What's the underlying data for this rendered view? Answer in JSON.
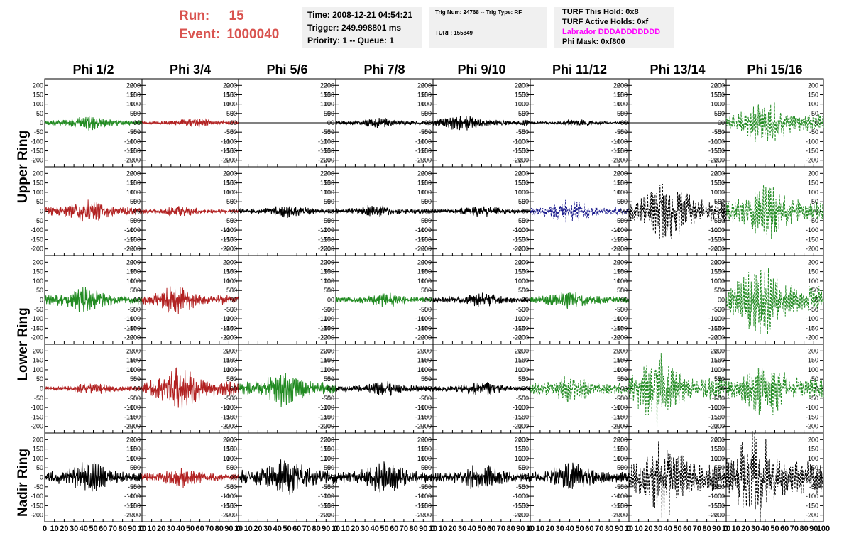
{
  "run": {
    "run_label": "Run:",
    "run_value": "15",
    "event_label": "Event:",
    "event_value": "1000040"
  },
  "info_time": [
    "Time: 2008-12-21 04:54:21",
    "Trigger: 249.998801 ms",
    "Priority: 1 -- Queue: 1"
  ],
  "info_trig": {
    "line1": "Trig Num: 24768 -- Trig Type: RF",
    "line2": "TURF: 155849"
  },
  "info_turf": {
    "this_hold": "TURF This Hold: 0x8",
    "active_holds": "TURF Active Holds: 0xf",
    "labrador": "Labrador DDDADDDDDDD",
    "phi_mask": "Phi Mask: 0xf800",
    "labrador_color": "#ff00ff"
  },
  "colors": {
    "run_text": "#d9534f",
    "black": "#000000",
    "red": "#b22222",
    "green": "#228b22",
    "blue": "#1a1a8c"
  },
  "chart_data": {
    "type": "line",
    "title": "",
    "columns": [
      "Phi 1/2",
      "Phi 3/4",
      "Phi 5/6",
      "Phi 7/8",
      "Phi 9/10",
      "Phi 11/12",
      "Phi 13/14",
      "Phi 15/16"
    ],
    "rows": [
      "Upper Ring",
      "",
      "Lower Ring",
      "",
      "Nadir Ring"
    ],
    "xlim": [
      0,
      100
    ],
    "ylim": [
      -220,
      220
    ],
    "y_ticks": [
      -200,
      -150,
      -100,
      -50,
      0,
      50,
      100,
      150,
      200
    ],
    "x_ticks": [
      0,
      10,
      20,
      30,
      40,
      50,
      60,
      70,
      80,
      90,
      100
    ],
    "x_tick_labels": [
      [
        "0",
        "10",
        "20",
        "30",
        "40",
        "50",
        "60",
        "70",
        "80",
        "90",
        "10"
      ],
      [
        "0",
        "10",
        "20",
        "30",
        "40",
        "50",
        "60",
        "70",
        "80",
        "90",
        "10"
      ],
      [
        "0",
        "10",
        "20",
        "30",
        "40",
        "50",
        "60",
        "70",
        "80",
        "90",
        "10"
      ],
      [
        "0",
        "10",
        "20",
        "30",
        "40",
        "50",
        "60",
        "70",
        "80",
        "90",
        "10"
      ],
      [
        "0",
        "10",
        "20",
        "30",
        "40",
        "50",
        "60",
        "70",
        "80",
        "90",
        "10"
      ],
      [
        "0",
        "10",
        "20",
        "30",
        "40",
        "50",
        "60",
        "70",
        "80",
        "90",
        "10"
      ],
      [
        "0",
        "10",
        "20",
        "30",
        "40",
        "50",
        "60",
        "70",
        "80",
        "90",
        "10"
      ],
      [
        "0",
        "10",
        "20",
        "30",
        "40",
        "50",
        "60",
        "70",
        "80",
        "90",
        "100"
      ]
    ],
    "panels": [
      [
        {
          "color": "green",
          "dashed": false,
          "amp": 35,
          "peak": 45,
          "flat": false
        },
        {
          "color": "red",
          "dashed": false,
          "amp": 22,
          "peak": 55,
          "flat": false
        },
        {
          "color": "black",
          "dashed": false,
          "amp": 0,
          "peak": 50,
          "flat": true
        },
        {
          "color": "black",
          "dashed": false,
          "amp": 25,
          "peak": 45,
          "flat": false
        },
        {
          "color": "black",
          "dashed": false,
          "amp": 38,
          "peak": 30,
          "flat": false
        },
        {
          "color": "black",
          "dashed": false,
          "amp": 15,
          "peak": 50,
          "flat": false
        },
        {
          "color": "black",
          "dashed": false,
          "amp": 0,
          "peak": 50,
          "flat": true
        },
        {
          "color": "green",
          "dashed": true,
          "amp": 110,
          "peak": 40,
          "flat": false
        }
      ],
      [
        {
          "color": "red",
          "dashed": false,
          "amp": 55,
          "peak": 45,
          "flat": false
        },
        {
          "color": "red",
          "dashed": false,
          "amp": 25,
          "peak": 40,
          "flat": false
        },
        {
          "color": "black",
          "dashed": false,
          "amp": 30,
          "peak": 50,
          "flat": false
        },
        {
          "color": "black",
          "dashed": false,
          "amp": 30,
          "peak": 40,
          "flat": false
        },
        {
          "color": "black",
          "dashed": false,
          "amp": 25,
          "peak": 50,
          "flat": false
        },
        {
          "color": "blue",
          "dashed": true,
          "amp": 55,
          "peak": 40,
          "flat": false
        },
        {
          "color": "black",
          "dashed": true,
          "amp": 150,
          "peak": 40,
          "flat": false
        },
        {
          "color": "green",
          "dashed": true,
          "amp": 140,
          "peak": 40,
          "flat": false
        }
      ],
      [
        {
          "color": "green",
          "dashed": false,
          "amp": 65,
          "peak": 40,
          "flat": false
        },
        {
          "color": "red",
          "dashed": false,
          "amp": 65,
          "peak": 35,
          "flat": false
        },
        {
          "color": "green",
          "dashed": false,
          "amp": 0,
          "peak": 50,
          "flat": true
        },
        {
          "color": "green",
          "dashed": false,
          "amp": 35,
          "peak": 50,
          "flat": false
        },
        {
          "color": "black",
          "dashed": false,
          "amp": 35,
          "peak": 50,
          "flat": false
        },
        {
          "color": "green",
          "dashed": false,
          "amp": 45,
          "peak": 40,
          "flat": false
        },
        {
          "color": "green",
          "dashed": false,
          "amp": 0,
          "peak": 50,
          "flat": true
        },
        {
          "color": "green",
          "dashed": true,
          "amp": 180,
          "peak": 35,
          "flat": false
        }
      ],
      [
        {
          "color": "red",
          "dashed": false,
          "amp": 30,
          "peak": 50,
          "flat": false
        },
        {
          "color": "red",
          "dashed": false,
          "amp": 100,
          "peak": 40,
          "flat": false
        },
        {
          "color": "green",
          "dashed": false,
          "amp": 85,
          "peak": 45,
          "flat": false
        },
        {
          "color": "black",
          "dashed": false,
          "amp": 35,
          "peak": 50,
          "flat": false
        },
        {
          "color": "black",
          "dashed": false,
          "amp": 35,
          "peak": 50,
          "flat": false
        },
        {
          "color": "green",
          "dashed": true,
          "amp": 75,
          "peak": 40,
          "flat": false
        },
        {
          "color": "green",
          "dashed": true,
          "amp": 170,
          "peak": 30,
          "flat": false
        },
        {
          "color": "green",
          "dashed": true,
          "amp": 140,
          "peak": 40,
          "flat": false
        }
      ],
      [
        {
          "color": "black",
          "dashed": false,
          "amp": 75,
          "peak": 45,
          "flat": false
        },
        {
          "color": "red",
          "dashed": false,
          "amp": 50,
          "peak": 40,
          "flat": false
        },
        {
          "color": "black",
          "dashed": false,
          "amp": 95,
          "peak": 50,
          "flat": false
        },
        {
          "color": "black",
          "dashed": false,
          "amp": 75,
          "peak": 50,
          "flat": false
        },
        {
          "color": "black",
          "dashed": false,
          "amp": 65,
          "peak": 50,
          "flat": false
        },
        {
          "color": "black",
          "dashed": false,
          "amp": 70,
          "peak": 40,
          "flat": false
        },
        {
          "color": "black",
          "dashed": true,
          "amp": 190,
          "peak": 35,
          "flat": false
        },
        {
          "color": "black",
          "dashed": true,
          "amp": 220,
          "peak": 30,
          "flat": false
        }
      ]
    ]
  }
}
